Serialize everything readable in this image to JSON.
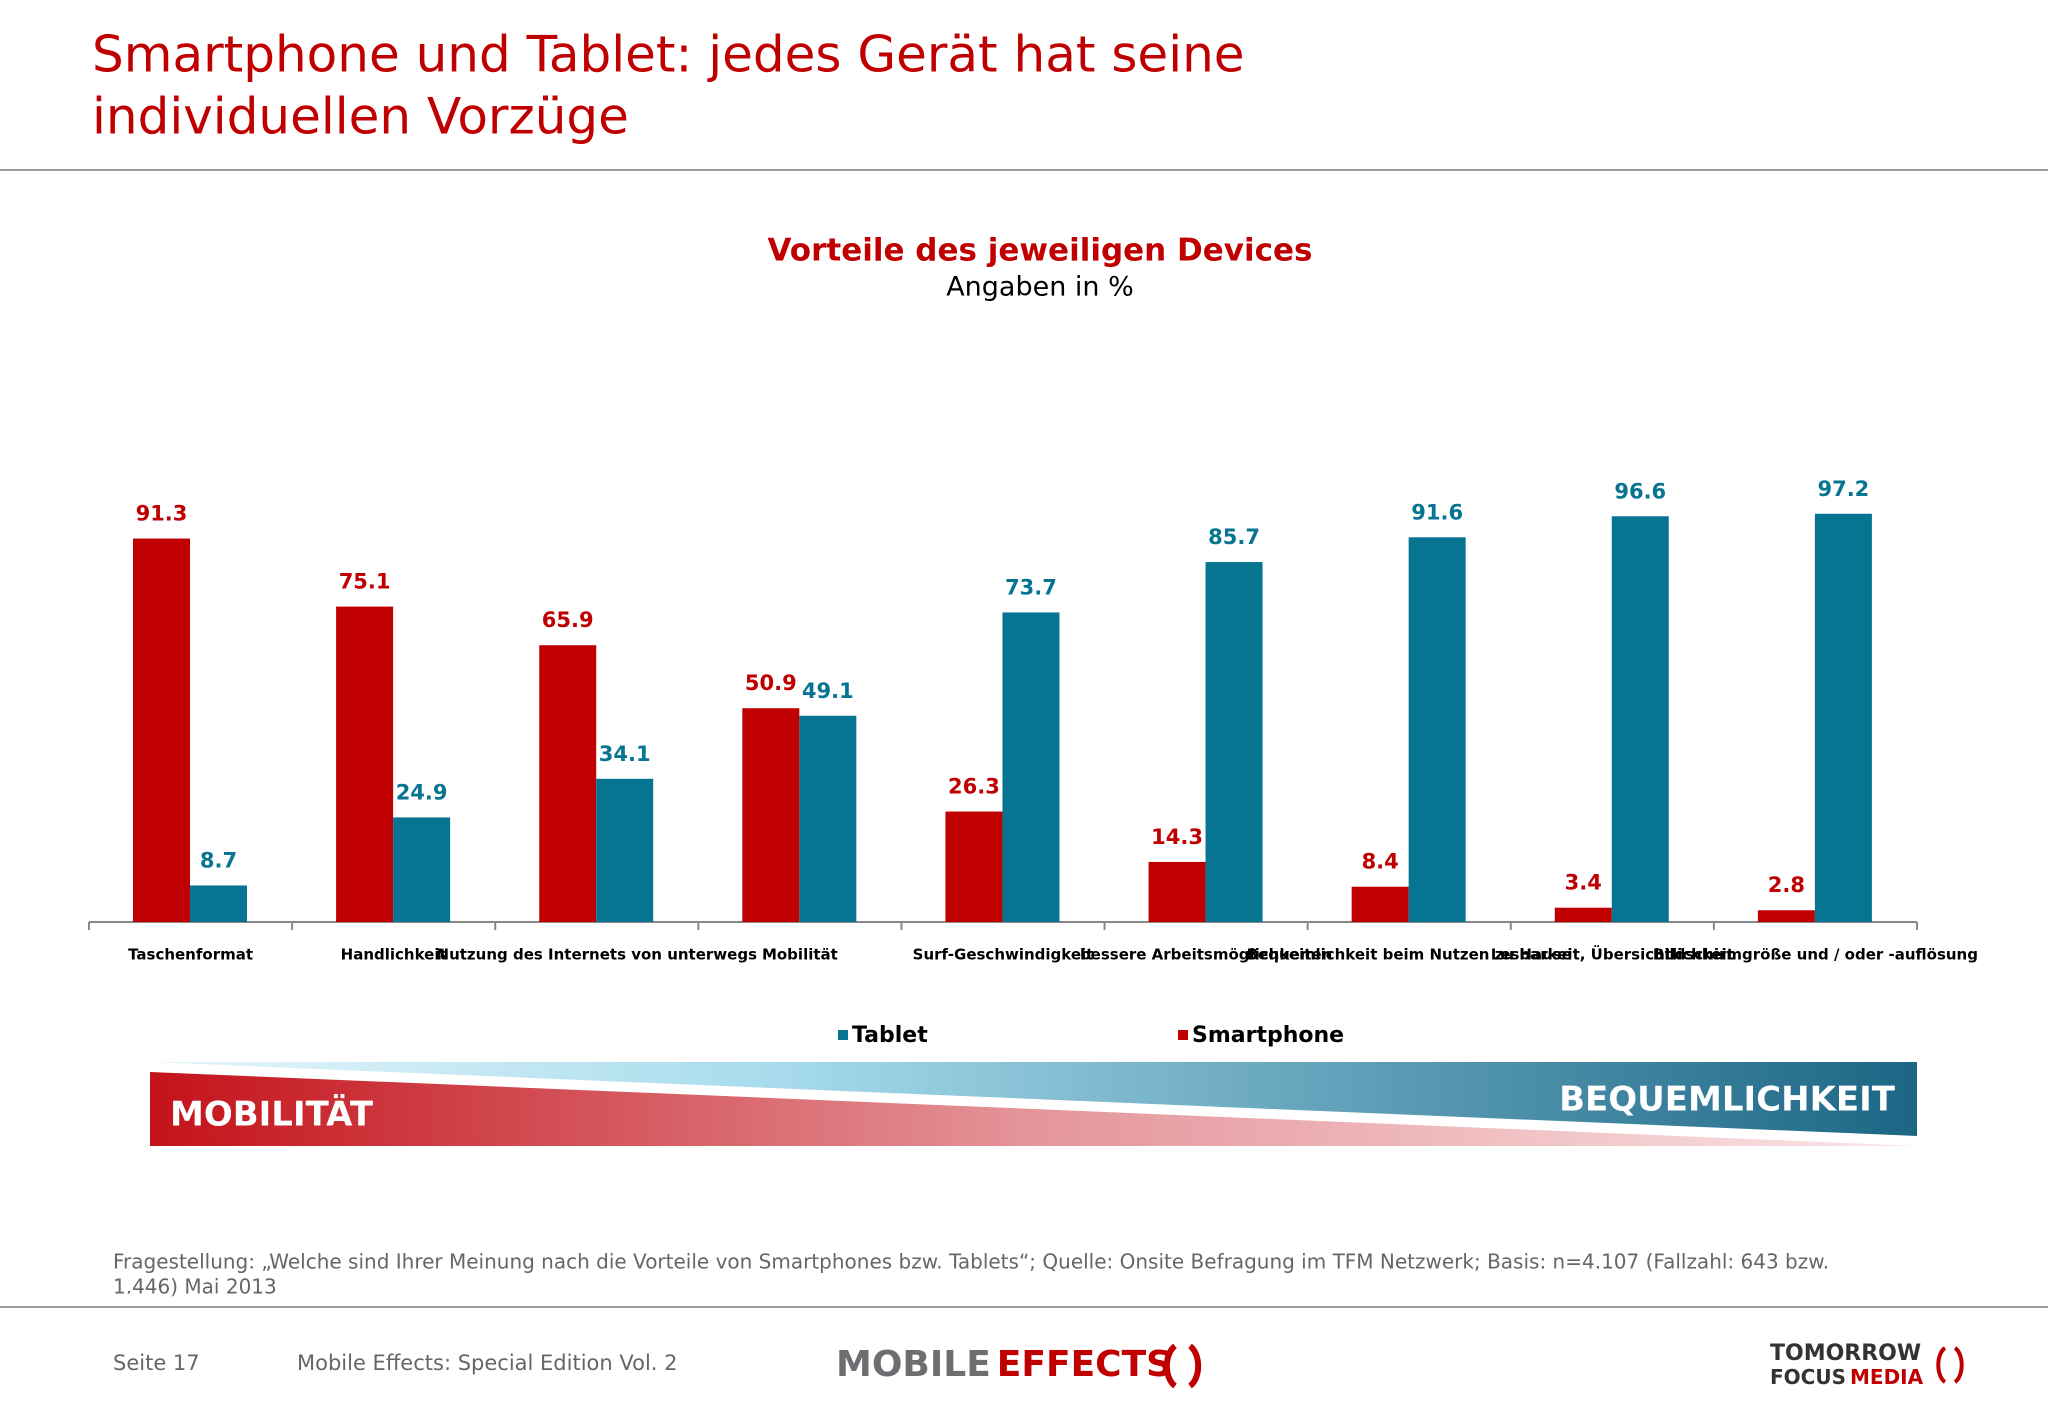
{
  "header": {
    "title_lines": [
      "Smartphone und Tablet: jedes Gerät hat seine",
      "individuellen Vorzüge"
    ]
  },
  "chart_data": {
    "type": "bar",
    "title": "Vorteile des jeweiligen Devices",
    "subtitle": "Angaben in %",
    "categories": [
      "Taschenformat",
      "Handlichkeit",
      "Nutzung des Internets von unterwegs",
      "Mobilität",
      "Surf-Geschwindigkeit",
      "bessere Arbeitsmöglichkeiten",
      "Bequemlichkeit beim Nutzen zu Hause",
      "Lesbarkeit, Übersichtlichkeit",
      "Bildschirmgröße und / oder -auflösung"
    ],
    "series": [
      {
        "name": "Smartphone",
        "color": "#c00000",
        "values": [
          91.3,
          75.1,
          65.9,
          50.9,
          26.3,
          14.3,
          8.4,
          3.4,
          2.8
        ]
      },
      {
        "name": "Tablet",
        "color": "#077491",
        "values": [
          8.7,
          24.9,
          34.1,
          49.1,
          73.7,
          85.7,
          91.6,
          96.6,
          97.2
        ]
      }
    ],
    "ylim": [
      0,
      100
    ]
  },
  "band": {
    "left": "MOBILITÄT",
    "right": "BEQUEMLICHKEIT"
  },
  "footnote_lines": [
    "Fragestellung: „Welche sind Ihrer Meinung nach die Vorteile von Smartphones bzw. Tablets“; Quelle: Onsite Befragung im TFM Netzwerk; Basis: n=4.107 (Fallzahl: 643 bzw.",
    "1.446) Mai 2013"
  ],
  "footer": {
    "page": "Seite 17",
    "publication": "Mobile Effects: Special Edition Vol. 2",
    "logo_left": [
      "MOBILE",
      "EFFECTS"
    ],
    "logo_right": [
      "TOMORROW",
      "FOCUS",
      "MEDIA"
    ]
  }
}
